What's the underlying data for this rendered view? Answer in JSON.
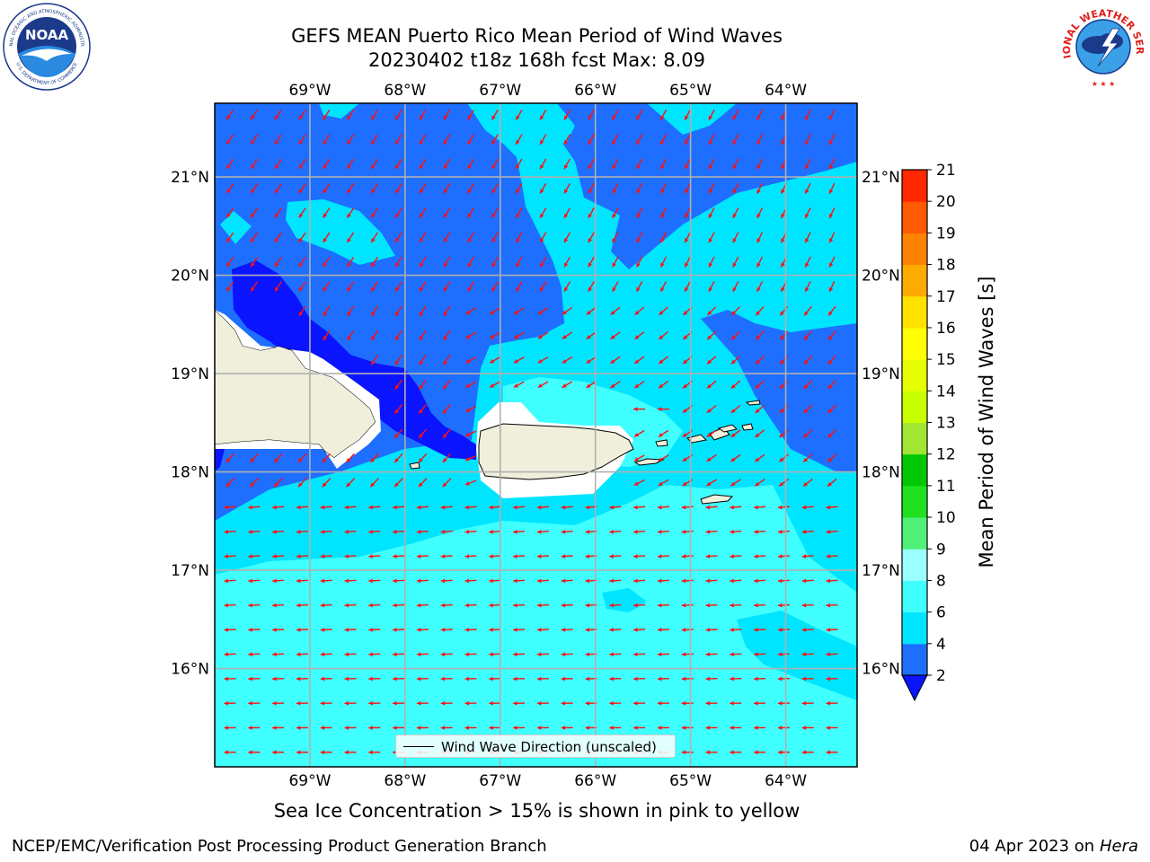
{
  "header": {
    "title_line1": "GEFS MEAN Puerto Rico Mean Period of Wind Waves",
    "title_line2": "20230402 t18z 168h fcst   Max: 8.09"
  },
  "logos": {
    "left": {
      "text": "NOAA",
      "icon": "noaa-logo-icon",
      "ring_top": "NATIONAL OCEANIC AND ATMOSPHERIC ADMINISTRATION",
      "ring_bottom": "U.S. DEPARTMENT OF COMMERCE"
    },
    "right": {
      "ring_text": "NATIONAL WEATHER SERVICE",
      "icon": "nws-logo-icon"
    }
  },
  "map": {
    "lon_labels": [
      "69°W",
      "68°W",
      "67°W",
      "66°W",
      "65°W",
      "64°W"
    ],
    "lat_labels": [
      "21°N",
      "20°N",
      "19°N",
      "18°N",
      "17°N",
      "16°N"
    ],
    "extent": {
      "lon": [
        -70.0,
        -63.25
      ],
      "lat": [
        15.0,
        21.75
      ]
    },
    "grid": true
  },
  "colorbar": {
    "title": "Mean Period of Wind Waves [s]",
    "levels": [
      "2",
      "4",
      "6",
      "8",
      "9",
      "10",
      "11",
      "12",
      "13",
      "14",
      "15",
      "16",
      "17",
      "18",
      "19",
      "20",
      "21"
    ],
    "colors": [
      "#1e6eff",
      "#00e5ff",
      "#40ffff",
      "#9cffff",
      "#50f078",
      "#20e020",
      "#00c800",
      "#a0e632",
      "#c8ff00",
      "#e6ff00",
      "#ffff00",
      "#ffe100",
      "#ffaa00",
      "#ff8200",
      "#ff5a00",
      "#ff2800"
    ],
    "extend_color": "#0a14ff"
  },
  "legend": {
    "label": "Wind Wave Direction (unscaled)"
  },
  "note": "Sea Ice Concentration > 15% is shown in pink to yellow",
  "footer": {
    "left": "NCEP/EMC/Verification Post Processing Product Generation Branch",
    "right_prefix": "04 Apr 2023 on ",
    "right_host": "Hera"
  }
}
